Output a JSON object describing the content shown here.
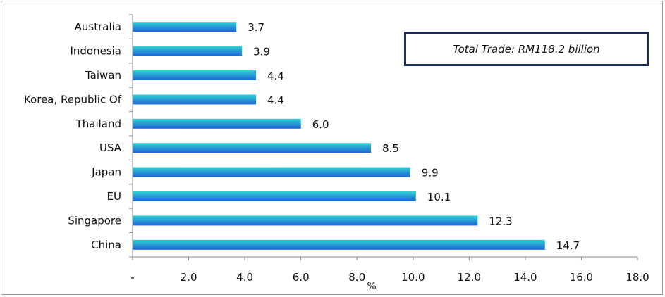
{
  "chart_data": {
    "type": "bar",
    "orientation": "horizontal",
    "categories": [
      "Australia",
      "Indonesia",
      "Taiwan",
      "Korea, Republic Of",
      "Thailand",
      "USA",
      "Japan",
      "EU",
      "Singapore",
      "China"
    ],
    "values": [
      3.7,
      3.9,
      4.4,
      4.4,
      6.0,
      8.5,
      9.9,
      10.1,
      12.3,
      14.7
    ],
    "value_labels": [
      "3.7",
      "3.9",
      "4.4",
      "4.4",
      "6.0",
      "8.5",
      "9.9",
      "10.1",
      "12.3",
      "14.7"
    ],
    "xlim": [
      0,
      18
    ],
    "x_ticks": [
      "-",
      "2.0",
      "4.0",
      "6.0",
      "8.0",
      "10.0",
      "12.0",
      "14.0",
      "16.0",
      "18.0"
    ],
    "xlabel": "%",
    "annotation": "Total Trade: RM118.2 billion",
    "grid": false,
    "colors": {
      "bar_top": "#2fd2d2",
      "bar_bottom": "#1e63d6",
      "box_border": "#1b2d5a"
    }
  }
}
